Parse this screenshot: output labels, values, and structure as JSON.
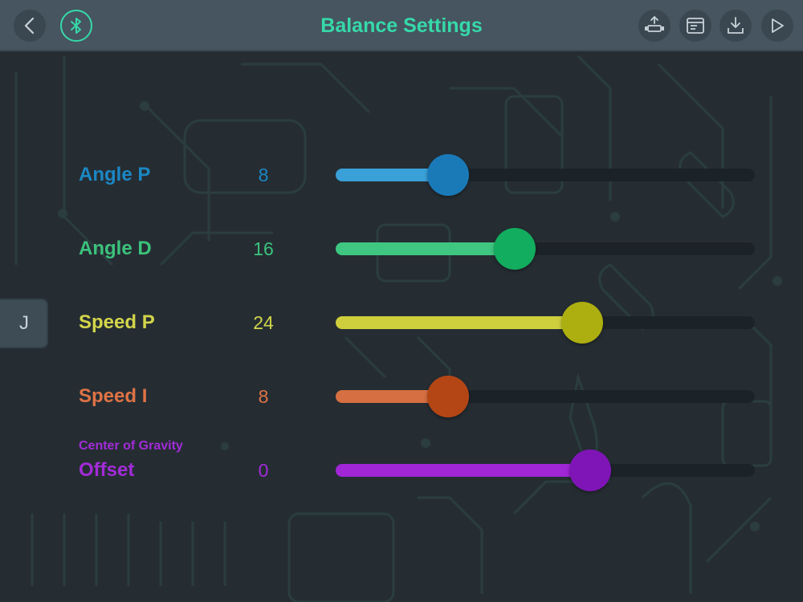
{
  "header": {
    "title": "Balance Settings",
    "title_color": "#36d9a9",
    "icons": {
      "back": "chevron-left-icon",
      "bluetooth": "bluetooth-icon",
      "upload": "robot-upload-icon",
      "log": "log-window-icon",
      "download": "download-icon",
      "play": "play-icon"
    }
  },
  "side_tab": {
    "label": "J"
  },
  "rows": [
    {
      "sublabel": "",
      "label": "Angle P",
      "value": "8",
      "level": 0.16,
      "color": "#1b87c4",
      "fill_color": "#3aa0d8",
      "thumb_color": "#1a7ab8"
    },
    {
      "sublabel": "",
      "label": "Angle D",
      "value": "16",
      "level": 0.32,
      "color": "#3cc27c",
      "fill_color": "#3fc781",
      "thumb_color": "#12ad5e"
    },
    {
      "sublabel": "",
      "label": "Speed P",
      "value": "24",
      "level": 0.48,
      "color": "#d3d54a",
      "fill_color": "#cfcf3e",
      "thumb_color": "#adae10"
    },
    {
      "sublabel": "",
      "label": "Speed I",
      "value": "8",
      "level": 0.16,
      "color": "#df7345",
      "fill_color": "#d66f42",
      "thumb_color": "#b44615"
    },
    {
      "sublabel": "Center of Gravity",
      "label": "Offset",
      "value": "0",
      "level": 0.5,
      "color": "#a32bd8",
      "fill_color": "#a126d6",
      "thumb_color": "#7f15b6"
    }
  ]
}
